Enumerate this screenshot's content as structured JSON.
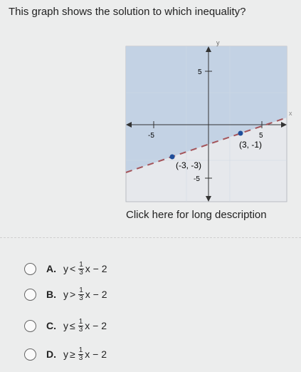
{
  "question": "This graph shows the solution to which inequality?",
  "graph": {
    "y_axis_label": "y",
    "x_axis_label": "x",
    "y_tick_top": "5",
    "y_tick_bottom": "-5",
    "x_tick_left": "-5",
    "x_tick_right": "5",
    "points": [
      {
        "label": "(3, -1)"
      },
      {
        "label": "(-3, -3)"
      }
    ]
  },
  "link": "Click here for long description",
  "options": [
    {
      "letter": "A.",
      "lhs": "y",
      "symbol": "<",
      "numerator": "1",
      "denominator": "3",
      "rhs": "x − 2"
    },
    {
      "letter": "B.",
      "lhs": "y",
      "symbol": ">",
      "numerator": "1",
      "denominator": "3",
      "rhs": "x − 2"
    },
    {
      "letter": "C.",
      "lhs": "y",
      "symbol": "≤",
      "numerator": "1",
      "denominator": "3",
      "rhs": "x − 2"
    },
    {
      "letter": "D.",
      "lhs": "y",
      "symbol": "≥",
      "numerator": "1",
      "denominator": "3",
      "rhs": "x − 2"
    }
  ]
}
